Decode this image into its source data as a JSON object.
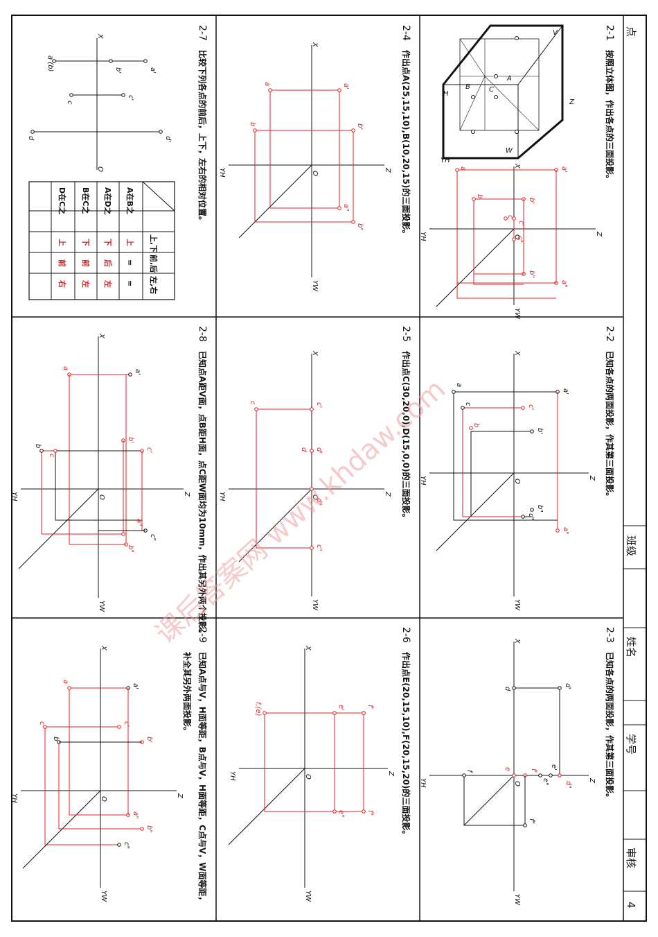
{
  "header": {
    "chapter": "点",
    "class_label": "班级",
    "name_label": "姓名",
    "id_label": "学号",
    "review_label": "审核",
    "page_number": "4"
  },
  "watermark": "课后答案网 www.khdaw.com",
  "problems": {
    "p2_1": {
      "num": "2-1",
      "text": "按照立体图，作出各点的三面投影。"
    },
    "p2_2": {
      "num": "2-2",
      "text": "已知各点的两面投影，作其第三面投影。"
    },
    "p2_3": {
      "num": "2-3",
      "text": "已知各点的两面投影，作其第三面投影。"
    },
    "p2_4": {
      "num": "2-4",
      "text": "作出点A(25,15,10),B(10,20,15)的三面投影。"
    },
    "p2_5": {
      "num": "2-5",
      "text": "作出点C(30,20,0),D(15,0,0)的三面投影。"
    },
    "p2_6": {
      "num": "2-6",
      "text": "作出点E(20,15,10),F(20,15,20)的三面投影。"
    },
    "p2_7": {
      "num": "2-7",
      "text": "比较下列各点的前后，上下，左右的相对位置。"
    },
    "p2_8": {
      "num": "2-8",
      "text": "已知点A距V面，点B距H面，点C距W面均为10mm，作出其另外两个投影。"
    },
    "p2_9": {
      "num": "2-9",
      "text": "已知A点与V，H面等距，B点与V，H面等距，C点与V，W面等距，",
      "text2": "补全其另外两面投影。"
    }
  },
  "table_2_7": {
    "col_headers": [
      "上,下",
      "前,后",
      "左,右"
    ],
    "rows": [
      {
        "label": "A在B之",
        "ud": "上",
        "fb": "=",
        "lr": "="
      },
      {
        "label": "A在D之",
        "ud": "下",
        "fb": "后",
        "lr": "左"
      },
      {
        "label": "B在C之",
        "ud": "下",
        "fb": "前",
        "lr": "左"
      },
      {
        "label": "D在C之",
        "ud": "上",
        "fb": "前",
        "lr": "右"
      }
    ]
  },
  "axis_labels": {
    "x": "X",
    "z": "Z",
    "yh": "YH",
    "yw": "YW",
    "o": "O"
  },
  "cube_labels": {
    "v": "V",
    "h": "H",
    "w": "W",
    "a": "A",
    "b": "B",
    "c": "C"
  },
  "point_labels": {
    "p21": [
      "a'",
      "b'",
      "c'",
      "a",
      "b",
      "c",
      "a\"",
      "b\"",
      "c\""
    ],
    "p22": [
      "a'",
      "b'",
      "c'",
      "a",
      "b",
      "c",
      "a\"",
      "b\"",
      "c\""
    ],
    "p23": [
      "d'",
      "e'",
      "e\"",
      "f'",
      "d",
      "e",
      "f",
      "d\"",
      "f\""
    ],
    "p24": [
      "a'",
      "b'",
      "a",
      "b",
      "a\"",
      "b\""
    ],
    "p25": [
      "c'",
      "d'",
      "c",
      "d",
      "c\"",
      "d\""
    ],
    "p26": [
      "e'",
      "f'",
      "f,(e)",
      "e\"",
      "f\""
    ],
    "p27": [
      "a'",
      "b'",
      "c'",
      "d'",
      "a (b)",
      "c",
      "d"
    ],
    "p28": [
      "a'",
      "b'",
      "c'",
      "a",
      "b",
      "c",
      "a\"",
      "b\"",
      "c\""
    ],
    "p29": [
      "a'",
      "b'",
      "c'",
      "a",
      "b",
      "c",
      "a\"",
      "b\"",
      "c\""
    ]
  }
}
